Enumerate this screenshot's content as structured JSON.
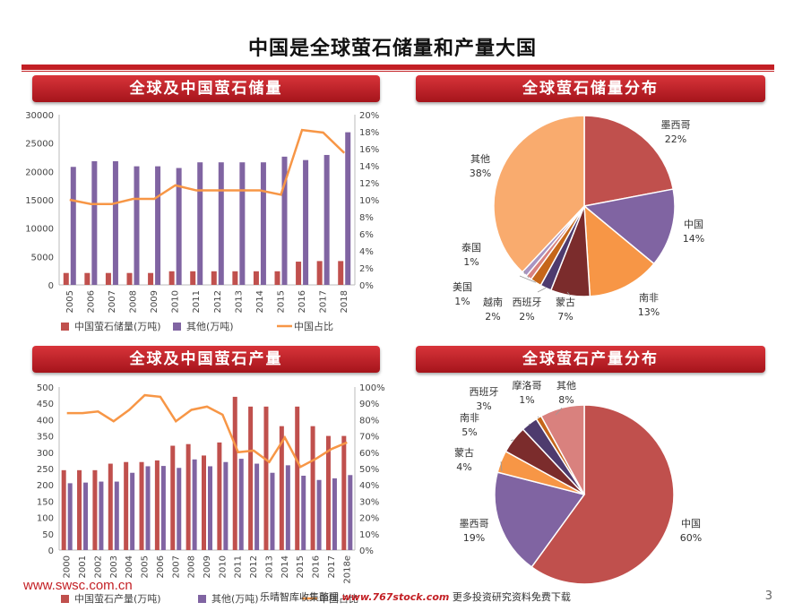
{
  "page": {
    "title": "中国是全球萤石储量和产量大国",
    "page_number": "3",
    "footer_site": "www.swsc.com.cn",
    "footer_prefix": "乐晴智库收集整理",
    "footer_brand": "www.767stock.com",
    "footer_suffix": "更多投资研究资料免费下载"
  },
  "colors": {
    "red": "#c0504d",
    "purple": "#8064a2",
    "orange": "#f79646",
    "banner": "#c31f24"
  },
  "chart_data": [
    {
      "type": "bar",
      "title": "全球及中国萤石储量",
      "categories": [
        "2005",
        "2006",
        "2007",
        "2008",
        "2009",
        "2010",
        "2011",
        "2012",
        "2013",
        "2014",
        "2015",
        "2016",
        "2017",
        "2018"
      ],
      "y_ticks": [
        "30000",
        "25000",
        "20000",
        "15000",
        "10000",
        "5000",
        "0"
      ],
      "y2_ticks": [
        "20%",
        "18%",
        "16%",
        "14%",
        "12%",
        "10%",
        "8%",
        "6%",
        "4%",
        "2%",
        "0%"
      ],
      "ylim": [
        0,
        30000
      ],
      "y2lim": [
        0,
        20
      ],
      "series": [
        {
          "name": "中国萤石储量(万吨)",
          "kind": "bar",
          "color": "#c0504d",
          "values": [
            2100,
            2100,
            2100,
            2100,
            2100,
            2400,
            2400,
            2400,
            2400,
            2400,
            2400,
            4100,
            4200,
            4200
          ]
        },
        {
          "name": "其他(万吨)",
          "kind": "bar",
          "color": "#8064a2",
          "values": [
            20800,
            21800,
            21800,
            20900,
            20900,
            20600,
            21600,
            21600,
            21600,
            21600,
            22600,
            22000,
            22900,
            26900
          ]
        },
        {
          "name": "中国占比",
          "kind": "line",
          "axis": "right",
          "color": "#f79646",
          "values": [
            10.0,
            9.5,
            9.5,
            10.1,
            10.1,
            11.7,
            11.1,
            11.1,
            11.1,
            11.1,
            10.6,
            18.2,
            17.9,
            15.5
          ]
        }
      ]
    },
    {
      "type": "pie",
      "title": "全球萤石储量分布",
      "slices": [
        {
          "label": "墨西哥",
          "pct": "22%",
          "value": 22,
          "color": "#c0504d"
        },
        {
          "label": "中国",
          "pct": "14%",
          "value": 14,
          "color": "#8064a2"
        },
        {
          "label": "南非",
          "pct": "13%",
          "value": 13,
          "color": "#f79646"
        },
        {
          "label": "蒙古",
          "pct": "7%",
          "value": 7,
          "color": "#7b2c2c"
        },
        {
          "label": "西班牙",
          "pct": "2%",
          "value": 2,
          "color": "#4e3b6e"
        },
        {
          "label": "越南",
          "pct": "2%",
          "value": 2,
          "color": "#c5661a"
        },
        {
          "label": "美国",
          "pct": "1%",
          "value": 1,
          "color": "#d9817e"
        },
        {
          "label": "泰国",
          "pct": "1%",
          "value": 1,
          "color": "#a894c2"
        },
        {
          "label": "其他",
          "pct": "38%",
          "value": 38,
          "color": "#f9ab6e"
        }
      ]
    },
    {
      "type": "bar",
      "title": "全球及中国萤石产量",
      "categories": [
        "2000",
        "2001",
        "2002",
        "2003",
        "2004",
        "2005",
        "2006",
        "2007",
        "2008",
        "2009",
        "2010",
        "2011",
        "2012",
        "2013",
        "2014",
        "2015",
        "2016",
        "2017",
        "2018e"
      ],
      "y_ticks": [
        "500",
        "450",
        "400",
        "350",
        "300",
        "250",
        "200",
        "150",
        "100",
        "50",
        "0"
      ],
      "y2_ticks": [
        "100%",
        "90%",
        "80%",
        "70%",
        "60%",
        "50%",
        "40%",
        "30%",
        "20%",
        "10%",
        "0%"
      ],
      "ylim": [
        0,
        500
      ],
      "y2lim": [
        0,
        100
      ],
      "series": [
        {
          "name": "中国萤石产量(万吨)",
          "kind": "bar",
          "color": "#c0504d",
          "values": [
            245,
            245,
            245,
            265,
            270,
            270,
            275,
            320,
            325,
            290,
            330,
            470,
            440,
            440,
            380,
            440,
            380,
            350,
            350
          ]
        },
        {
          "name": "其他(万吨)",
          "kind": "bar",
          "color": "#8064a2",
          "values": [
            205,
            207,
            210,
            210,
            237,
            257,
            258,
            252,
            278,
            257,
            270,
            280,
            265,
            237,
            260,
            228,
            215,
            220,
            230
          ]
        },
        {
          "name": "中国占比",
          "kind": "line",
          "axis": "right",
          "color": "#f79646",
          "values": [
            84,
            84,
            85,
            79,
            86,
            95,
            94,
            79,
            86,
            88,
            83,
            60,
            61,
            54,
            69,
            51,
            56,
            62,
            66
          ]
        }
      ]
    },
    {
      "type": "pie",
      "title": "全球萤石产量分布",
      "slices": [
        {
          "label": "中国",
          "pct": "60%",
          "value": 60,
          "color": "#c0504d"
        },
        {
          "label": "墨西哥",
          "pct": "19%",
          "value": 19,
          "color": "#8064a2"
        },
        {
          "label": "蒙古",
          "pct": "4%",
          "value": 4,
          "color": "#f79646"
        },
        {
          "label": "南非",
          "pct": "5%",
          "value": 5,
          "color": "#7b2c2c"
        },
        {
          "label": "西班牙",
          "pct": "3%",
          "value": 3,
          "color": "#4e3b6e"
        },
        {
          "label": "摩洛哥",
          "pct": "1%",
          "value": 1,
          "color": "#c5661a"
        },
        {
          "label": "其他",
          "pct": "8%",
          "value": 8,
          "color": "#d9817e"
        }
      ]
    }
  ]
}
